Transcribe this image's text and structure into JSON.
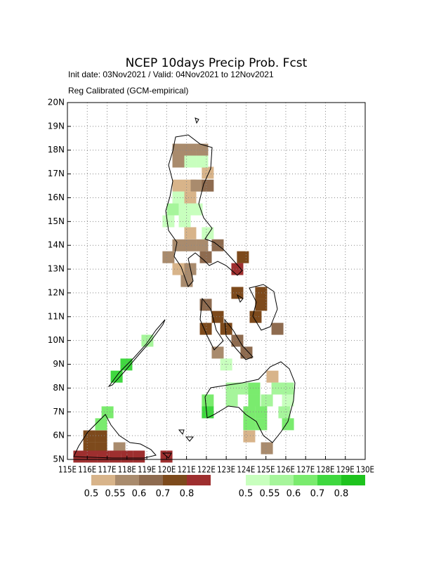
{
  "map": {
    "title": "NCEP 10days Precip Prob. Fcst",
    "subtitle": "Init date: 03Nov2021 / Valid: 04Nov2021 to 12Nov2021",
    "subtitle2": "Reg Calibrated (GCM-empirical)",
    "lonlim": [
      115,
      130
    ],
    "latlim": [
      5,
      20
    ],
    "lonticks": [
      {
        "value": 115,
        "label": "115E"
      },
      {
        "value": 116,
        "label": "116E"
      },
      {
        "value": 117,
        "label": "117E"
      },
      {
        "value": 118,
        "label": "118E"
      },
      {
        "value": 119,
        "label": "119E"
      },
      {
        "value": 120,
        "label": "120E"
      },
      {
        "value": 121,
        "label": "121E"
      },
      {
        "value": 122,
        "label": "122E"
      },
      {
        "value": 123,
        "label": "123E"
      },
      {
        "value": 124,
        "label": "124E"
      },
      {
        "value": 125,
        "label": "125E"
      },
      {
        "value": 126,
        "label": "126E"
      },
      {
        "value": 127,
        "label": "127E"
      },
      {
        "value": 128,
        "label": "128E"
      },
      {
        "value": 129,
        "label": "129E"
      },
      {
        "value": 130,
        "label": "130E"
      }
    ],
    "latticks": [
      {
        "value": 5,
        "label": "5N"
      },
      {
        "value": 6,
        "label": "6N"
      },
      {
        "value": 7,
        "label": "7N"
      },
      {
        "value": 8,
        "label": "8N"
      },
      {
        "value": 9,
        "label": "9N"
      },
      {
        "value": 10,
        "label": "10N"
      },
      {
        "value": 11,
        "label": "11N"
      },
      {
        "value": 12,
        "label": "12N"
      },
      {
        "value": 13,
        "label": "13N"
      },
      {
        "value": 14,
        "label": "14N"
      },
      {
        "value": 15,
        "label": "15N"
      },
      {
        "value": 16,
        "label": "16N"
      },
      {
        "value": 17,
        "label": "17N"
      },
      {
        "value": 18,
        "label": "18N"
      },
      {
        "value": 19,
        "label": "19N"
      },
      {
        "value": 20,
        "label": "20N"
      }
    ],
    "legend_levels": [
      0.5,
      0.55,
      0.6,
      0.7,
      0.8
    ],
    "dry_colors": [
      "#d8b48a",
      "#a98b6d",
      "#8e6b4f",
      "#7d4a1c",
      "#9e2f2f"
    ],
    "wet_colors": [
      "#c8ffbe",
      "#a6f59b",
      "#7aeb6e",
      "#3fd83f",
      "#1ec31e"
    ],
    "dry_cells": [
      {
        "lon": 120.59,
        "lat": 18.02,
        "value": 0.57
      },
      {
        "lon": 121.19,
        "lat": 18.02,
        "value": 0.57
      },
      {
        "lon": 121.79,
        "lat": 18.02,
        "value": 0.57
      },
      {
        "lon": 120.59,
        "lat": 17.52,
        "value": 0.57
      },
      {
        "lon": 122.07,
        "lat": 17.05,
        "value": 0.52
      },
      {
        "lon": 120.59,
        "lat": 16.51,
        "value": 0.52
      },
      {
        "lon": 121.19,
        "lat": 16.51,
        "value": 0.52
      },
      {
        "lon": 121.51,
        "lat": 16.51,
        "value": 0.57
      },
      {
        "lon": 122.07,
        "lat": 16.51,
        "value": 0.62
      },
      {
        "lon": 121.19,
        "lat": 16.01,
        "value": 0.52
      },
      {
        "lon": 121.19,
        "lat": 14.51,
        "value": 0.52
      },
      {
        "lon": 120.59,
        "lat": 14.0,
        "value": 0.57
      },
      {
        "lon": 121.19,
        "lat": 14.0,
        "value": 0.57
      },
      {
        "lon": 121.79,
        "lat": 14.0,
        "value": 0.57
      },
      {
        "lon": 122.57,
        "lat": 14.0,
        "value": 0.62
      },
      {
        "lon": 120.09,
        "lat": 13.5,
        "value": 0.57
      },
      {
        "lon": 121.97,
        "lat": 13.5,
        "value": 0.62
      },
      {
        "lon": 120.59,
        "lat": 13.0,
        "value": 0.52
      },
      {
        "lon": 121.19,
        "lat": 13.0,
        "value": 0.57
      },
      {
        "lon": 121.01,
        "lat": 12.5,
        "value": 0.57
      },
      {
        "lon": 123.84,
        "lat": 13.5,
        "value": 0.75
      },
      {
        "lon": 123.56,
        "lat": 13.0,
        "value": 0.85
      },
      {
        "lon": 123.56,
        "lat": 12.0,
        "value": 0.75
      },
      {
        "lon": 124.76,
        "lat": 12.0,
        "value": 0.75
      },
      {
        "lon": 124.76,
        "lat": 11.5,
        "value": 0.75
      },
      {
        "lon": 124.48,
        "lat": 10.99,
        "value": 0.75
      },
      {
        "lon": 121.97,
        "lat": 11.5,
        "value": 0.62
      },
      {
        "lon": 122.57,
        "lat": 10.99,
        "value": 0.75
      },
      {
        "lon": 121.97,
        "lat": 10.49,
        "value": 0.75
      },
      {
        "lon": 123.0,
        "lat": 10.49,
        "value": 0.75
      },
      {
        "lon": 123.56,
        "lat": 9.99,
        "value": 0.62
      },
      {
        "lon": 122.57,
        "lat": 9.49,
        "value": 0.57
      },
      {
        "lon": 124.02,
        "lat": 9.49,
        "value": 0.62
      },
      {
        "lon": 125.58,
        "lat": 10.49,
        "value": 0.62
      },
      {
        "lon": 125.33,
        "lat": 8.48,
        "value": 0.52
      },
      {
        "lon": 124.16,
        "lat": 5.97,
        "value": 0.52
      },
      {
        "lon": 125.05,
        "lat": 5.47,
        "value": 0.57
      },
      {
        "lon": 116.1,
        "lat": 5.97,
        "value": 0.75
      },
      {
        "lon": 116.7,
        "lat": 5.97,
        "value": 0.75
      },
      {
        "lon": 116.1,
        "lat": 5.47,
        "value": 0.75
      },
      {
        "lon": 116.7,
        "lat": 5.47,
        "value": 0.75
      },
      {
        "lon": 117.62,
        "lat": 5.47,
        "value": 0.57
      },
      {
        "lon": 115.6,
        "lat": 5.12,
        "value": 0.85
      },
      {
        "lon": 116.2,
        "lat": 5.12,
        "value": 0.85
      },
      {
        "lon": 116.8,
        "lat": 5.12,
        "value": 0.85
      },
      {
        "lon": 117.4,
        "lat": 5.12,
        "value": 0.85
      },
      {
        "lon": 118.0,
        "lat": 5.12,
        "value": 0.85
      },
      {
        "lon": 118.6,
        "lat": 5.12,
        "value": 0.85
      },
      {
        "lon": 119.99,
        "lat": 5.12,
        "value": 0.85
      }
    ],
    "wet_cells": [
      {
        "lon": 121.19,
        "lat": 17.52,
        "value": 0.52
      },
      {
        "lon": 121.79,
        "lat": 17.52,
        "value": 0.52
      },
      {
        "lon": 120.59,
        "lat": 16.01,
        "value": 0.52
      },
      {
        "lon": 120.31,
        "lat": 15.51,
        "value": 0.57
      },
      {
        "lon": 120.91,
        "lat": 15.51,
        "value": 0.52
      },
      {
        "lon": 121.51,
        "lat": 15.51,
        "value": 0.52
      },
      {
        "lon": 120.09,
        "lat": 15.01,
        "value": 0.52
      },
      {
        "lon": 120.91,
        "lat": 15.01,
        "value": 0.52
      },
      {
        "lon": 122.07,
        "lat": 14.51,
        "value": 0.52
      },
      {
        "lon": 123.0,
        "lat": 8.99,
        "value": 0.52
      },
      {
        "lon": 123.28,
        "lat": 7.98,
        "value": 0.57
      },
      {
        "lon": 123.84,
        "lat": 7.98,
        "value": 0.57
      },
      {
        "lon": 124.41,
        "lat": 7.98,
        "value": 0.62
      },
      {
        "lon": 125.58,
        "lat": 7.98,
        "value": 0.57
      },
      {
        "lon": 126.11,
        "lat": 7.98,
        "value": 0.57
      },
      {
        "lon": 122.07,
        "lat": 7.48,
        "value": 0.65
      },
      {
        "lon": 123.28,
        "lat": 7.48,
        "value": 0.57
      },
      {
        "lon": 124.41,
        "lat": 7.48,
        "value": 0.65
      },
      {
        "lon": 125.05,
        "lat": 7.48,
        "value": 0.57
      },
      {
        "lon": 126.11,
        "lat": 7.48,
        "value": 0.52
      },
      {
        "lon": 122.07,
        "lat": 6.98,
        "value": 0.72
      },
      {
        "lon": 124.16,
        "lat": 6.98,
        "value": 0.65
      },
      {
        "lon": 124.76,
        "lat": 6.98,
        "value": 0.65
      },
      {
        "lon": 125.93,
        "lat": 6.98,
        "value": 0.57
      },
      {
        "lon": 124.16,
        "lat": 6.48,
        "value": 0.65
      },
      {
        "lon": 124.76,
        "lat": 6.48,
        "value": 0.65
      },
      {
        "lon": 126.11,
        "lat": 6.48,
        "value": 0.62
      },
      {
        "lon": 117.97,
        "lat": 8.99,
        "value": 0.75
      },
      {
        "lon": 117.48,
        "lat": 8.48,
        "value": 0.75
      },
      {
        "lon": 119.03,
        "lat": 9.99,
        "value": 0.57
      },
      {
        "lon": 117.02,
        "lat": 6.98,
        "value": 0.62
      },
      {
        "lon": 116.7,
        "lat": 6.48,
        "value": 0.65
      }
    ]
  }
}
